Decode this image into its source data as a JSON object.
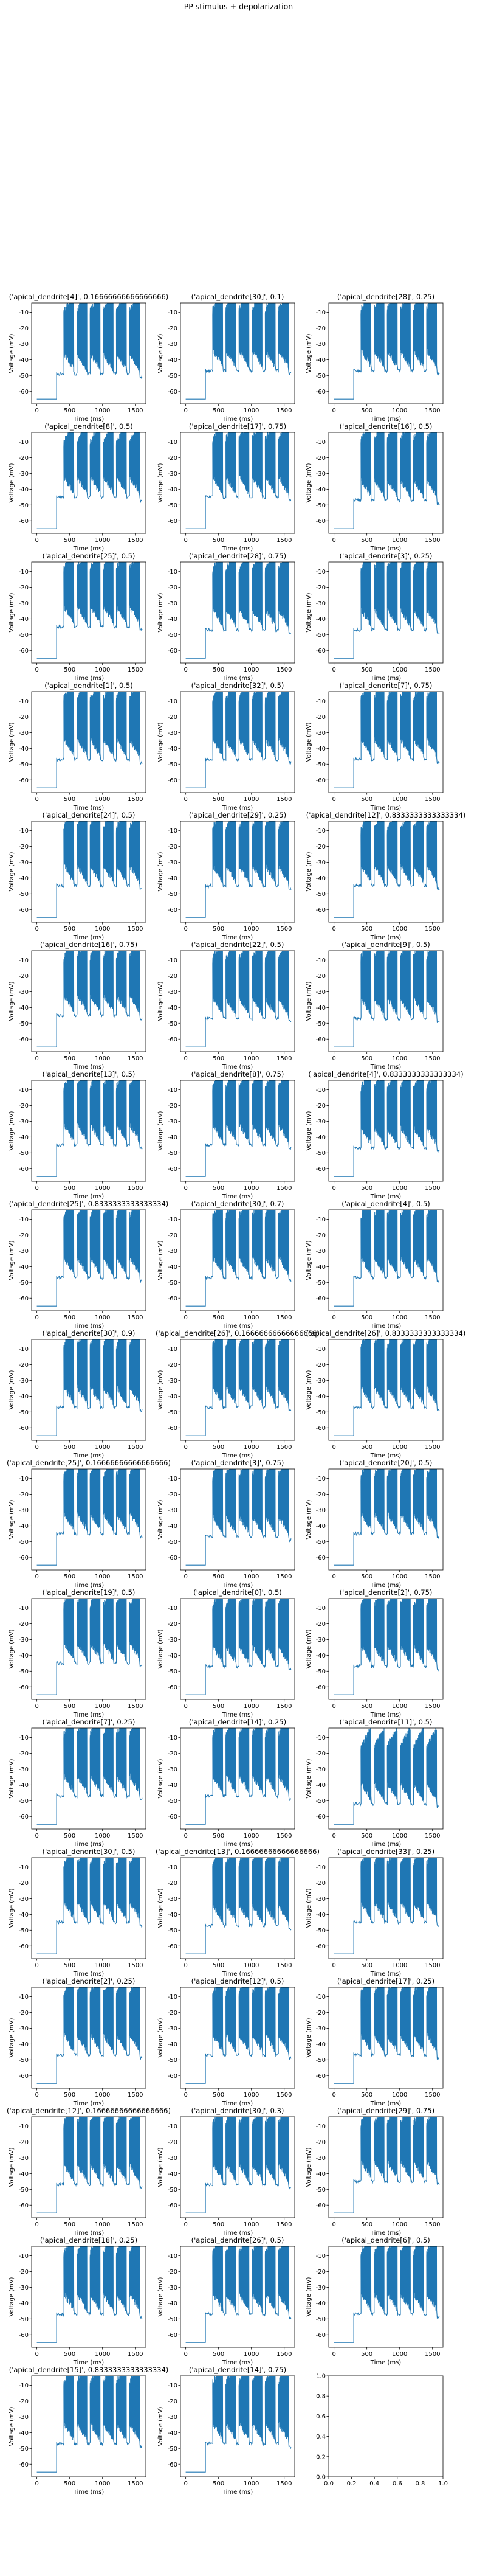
{
  "figure": {
    "title": "PP stimulus + depolarization"
  },
  "style": {
    "trace_color": "#1f77b4",
    "axis_color": "#000000",
    "background": "#ffffff"
  },
  "chart_data": {
    "type": "line",
    "layout": "grid of small-multiple line charts, 3 columns",
    "shared_axes": {
      "xlabel": "Time (ms)",
      "ylabel": "Voltage (mV)",
      "xlim": [
        -80,
        1660
      ],
      "ylim": [
        -68,
        -4
      ],
      "xticks": [
        0,
        500,
        1000,
        1500
      ],
      "yticks": [
        -60,
        -50,
        -40,
        -30,
        -20,
        -10
      ],
      "grid": false,
      "legend": "none"
    },
    "trace_shape": {
      "rest_mV": -65,
      "jump_at_ms": 300,
      "bursts": 6,
      "burst_onsets_ms": [
        410,
        610,
        810,
        1010,
        1210,
        1410
      ],
      "end_ms": 1600
    },
    "panels": [
      {
        "title": "('apical_dendrite[4]', 0.16666666666666666)",
        "peak_mV": -13,
        "trough_mV": -52
      },
      {
        "title": "('apical_dendrite[30]', 0.1)",
        "peak_mV": -12,
        "trough_mV": -50
      },
      {
        "title": "('apical_dendrite[28]', 0.25)",
        "peak_mV": -12,
        "trough_mV": -50
      },
      {
        "title": "('apical_dendrite[8]', 0.5)",
        "peak_mV": -14,
        "trough_mV": -48
      },
      {
        "title": "('apical_dendrite[17]', 0.75)",
        "peak_mV": -12,
        "trough_mV": -48
      },
      {
        "title": "('apical_dendrite[16]', 0.5)",
        "peak_mV": -12,
        "trough_mV": -50
      },
      {
        "title": "('apical_dendrite[25]', 0.5)",
        "peak_mV": -12,
        "trough_mV": -48
      },
      {
        "title": "('apical_dendrite[28]', 0.75)",
        "peak_mV": -13,
        "trough_mV": -50
      },
      {
        "title": "('apical_dendrite[3]', 0.25)",
        "peak_mV": -12,
        "trough_mV": -50
      },
      {
        "title": "('apical_dendrite[1]', 0.5)",
        "peak_mV": -12,
        "trough_mV": -50
      },
      {
        "title": "('apical_dendrite[32]', 0.5)",
        "peak_mV": -13,
        "trough_mV": -50
      },
      {
        "title": "('apical_dendrite[7]', 0.75)",
        "peak_mV": -12,
        "trough_mV": -50
      },
      {
        "title": "('apical_dendrite[24]', 0.5)",
        "peak_mV": -12,
        "trough_mV": -48
      },
      {
        "title": "('apical_dendrite[29]', 0.25)",
        "peak_mV": -12,
        "trough_mV": -48
      },
      {
        "title": "('apical_dendrite[12]', 0.8333333333333334)",
        "peak_mV": -13,
        "trough_mV": -48
      },
      {
        "title": "('apical_dendrite[16]', 0.75)",
        "peak_mV": -12,
        "trough_mV": -48
      },
      {
        "title": "('apical_dendrite[22]', 0.5)",
        "peak_mV": -13,
        "trough_mV": -50
      },
      {
        "title": "('apical_dendrite[9]', 0.5)",
        "peak_mV": -12,
        "trough_mV": -50
      },
      {
        "title": "('apical_dendrite[13]', 0.5)",
        "peak_mV": -12,
        "trough_mV": -48
      },
      {
        "title": "('apical_dendrite[8]', 0.75)",
        "peak_mV": -12,
        "trough_mV": -48
      },
      {
        "title": "('apical_dendrite[4]', 0.8333333333333334)",
        "peak_mV": -13,
        "trough_mV": -50
      },
      {
        "title": "('apical_dendrite[25]', 0.8333333333333334)",
        "peak_mV": -12,
        "trough_mV": -50
      },
      {
        "title": "('apical_dendrite[30]', 0.7)",
        "peak_mV": -12,
        "trough_mV": -50
      },
      {
        "title": "('apical_dendrite[4]', 0.5)",
        "peak_mV": -12,
        "trough_mV": -50
      },
      {
        "title": "('apical_dendrite[30]', 0.9)",
        "peak_mV": -12,
        "trough_mV": -50
      },
      {
        "title": "('apical_dendrite[26]', 0.16666666666666666)",
        "peak_mV": -12,
        "trough_mV": -50
      },
      {
        "title": "('apical_dendrite[26]', 0.8333333333333334)",
        "peak_mV": -12,
        "trough_mV": -50
      },
      {
        "title": "('apical_dendrite[25]', 0.16666666666666666)",
        "peak_mV": -12,
        "trough_mV": -48
      },
      {
        "title": "('apical_dendrite[3]', 0.75)",
        "peak_mV": -12,
        "trough_mV": -50
      },
      {
        "title": "('apical_dendrite[20]', 0.5)",
        "peak_mV": -12,
        "trough_mV": -48
      },
      {
        "title": "('apical_dendrite[19]', 0.5)",
        "peak_mV": -12,
        "trough_mV": -48
      },
      {
        "title": "('apical_dendrite[0]', 0.5)",
        "peak_mV": -12,
        "trough_mV": -50
      },
      {
        "title": "('apical_dendrite[2]', 0.75)",
        "peak_mV": -12,
        "trough_mV": -50
      },
      {
        "title": "('apical_dendrite[7]', 0.25)",
        "peak_mV": -12,
        "trough_mV": -50
      },
      {
        "title": "('apical_dendrite[14]', 0.25)",
        "peak_mV": -12,
        "trough_mV": -50
      },
      {
        "title": "('apical_dendrite[11]', 0.5)",
        "peak_mV": -20,
        "trough_mV": -55
      },
      {
        "title": "('apical_dendrite[30]', 0.5)",
        "peak_mV": -12,
        "trough_mV": -48
      },
      {
        "title": "('apical_dendrite[13]', 0.16666666666666666)",
        "peak_mV": -12,
        "trough_mV": -50
      },
      {
        "title": "('apical_dendrite[33]', 0.25)",
        "peak_mV": -12,
        "trough_mV": -48
      },
      {
        "title": "('apical_dendrite[2]', 0.25)",
        "peak_mV": -12,
        "trough_mV": -50
      },
      {
        "title": "('apical_dendrite[12]', 0.5)",
        "peak_mV": -12,
        "trough_mV": -50
      },
      {
        "title": "('apical_dendrite[17]', 0.25)",
        "peak_mV": -12,
        "trough_mV": -50
      },
      {
        "title": "('apical_dendrite[12]', 0.16666666666666666)",
        "peak_mV": -12,
        "trough_mV": -50
      },
      {
        "title": "('apical_dendrite[30]', 0.3)",
        "peak_mV": -12,
        "trough_mV": -50
      },
      {
        "title": "('apical_dendrite[29]', 0.75)",
        "peak_mV": -12,
        "trough_mV": -48
      },
      {
        "title": "('apical_dendrite[18]', 0.25)",
        "peak_mV": -12,
        "trough_mV": -50
      },
      {
        "title": "('apical_dendrite[26]', 0.5)",
        "peak_mV": -12,
        "trough_mV": -50
      },
      {
        "title": "('apical_dendrite[6]', 0.5)",
        "peak_mV": -12,
        "trough_mV": -50
      },
      {
        "title": "('apical_dendrite[15]', 0.8333333333333334)",
        "peak_mV": -12,
        "trough_mV": -50
      },
      {
        "title": "('apical_dendrite[14]', 0.75)",
        "peak_mV": -12,
        "trough_mV": -50
      }
    ],
    "empty_panel": {
      "xlim": [
        0,
        1
      ],
      "ylim": [
        0,
        1
      ],
      "xticks": [
        "0.0",
        "0.2",
        "0.4",
        "0.6",
        "0.8",
        "1.0"
      ],
      "yticks": [
        "0.0",
        "0.2",
        "0.4",
        "0.6",
        "0.8",
        "1.0"
      ]
    }
  }
}
